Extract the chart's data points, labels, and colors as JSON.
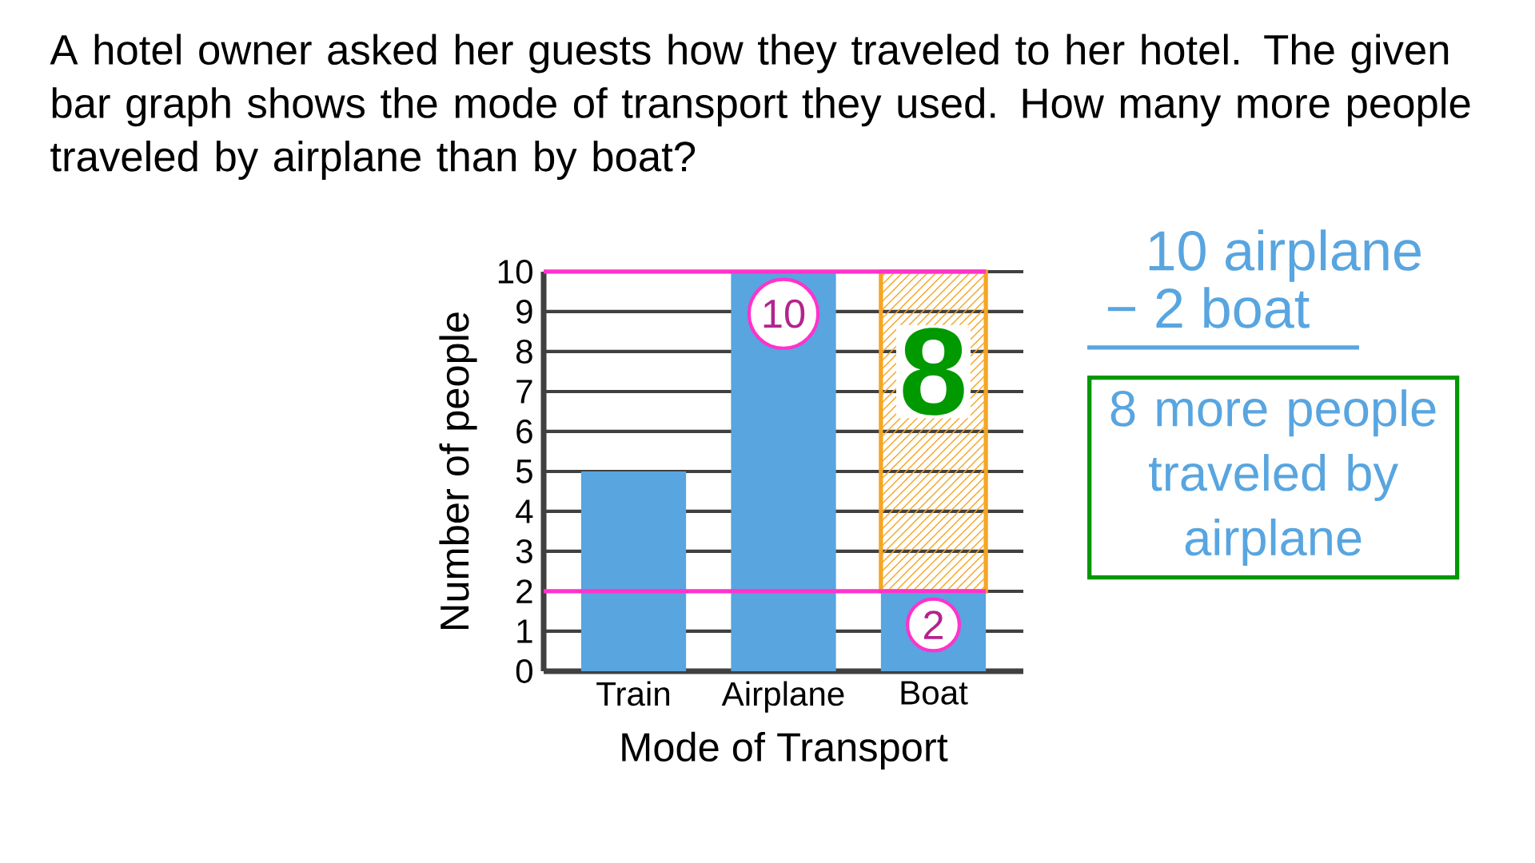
{
  "chart_data": {
    "type": "bar",
    "title": "A hotel owner asked her guests how they traveled to her hotel. The given bar graph shows the mode of transport they used. How many more people traveled by airplane than by boat?",
    "xlabel": "Mode of Transport",
    "ylabel": "Number of people",
    "categories": [
      "Train",
      "Airplane",
      "Boat"
    ],
    "stacked": true,
    "series": [
      {
        "color": "#58a5e0",
        "values": [
          5,
          10,
          2
        ],
        "value_labels": [
          null,
          "10",
          "2"
        ]
      },
      {
        "color": "#f5a623",
        "values": [
          null,
          null,
          8
        ],
        "value_labels": [
          null,
          null,
          "8"
        ]
      }
    ],
    "ylim": [
      0,
      10
    ],
    "yticks": [
      0,
      1,
      2,
      3,
      4,
      5,
      6,
      7,
      8,
      9,
      10
    ],
    "grid": "y",
    "ref_lines": [
      {
        "axis": "y",
        "value": 10,
        "color": "#ff33cc"
      },
      {
        "axis": "y",
        "value": 2,
        "color": "#ff33cc"
      }
    ],
    "annotations": [
      "10 airplane",
      "− 2 boat",
      "8 more people traveled by airplane"
    ]
  }
}
